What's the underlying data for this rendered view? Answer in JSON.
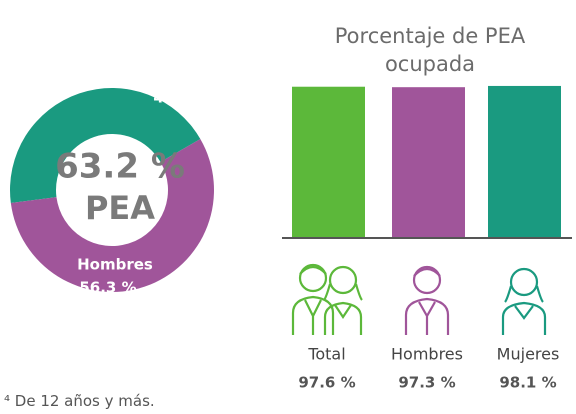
{
  "chart_data": [
    {
      "type": "donut",
      "categories": [
        "Mujeres",
        "Hombres"
      ],
      "values": [
        43.7,
        56.3
      ],
      "value_labels": [
        "43.7 %",
        "56.3 %"
      ],
      "colors": [
        "#1a9a80",
        "#a0559a"
      ],
      "center_text": "63.2 %",
      "center_subtext": "PEA"
    },
    {
      "type": "bar",
      "title": "Porcentaje de PEA ocupada",
      "categories": [
        "Total",
        "Hombres",
        "Mujeres"
      ],
      "values": [
        97.6,
        97.3,
        98.1
      ],
      "value_labels": [
        "97.6 %",
        "97.3 %",
        "98.1 %"
      ],
      "colors": [
        "#5cb83a",
        "#a0559a",
        "#1a9a80"
      ],
      "ylim": [
        0,
        100
      ]
    }
  ],
  "footnote": "⁴ De 12 años y más."
}
